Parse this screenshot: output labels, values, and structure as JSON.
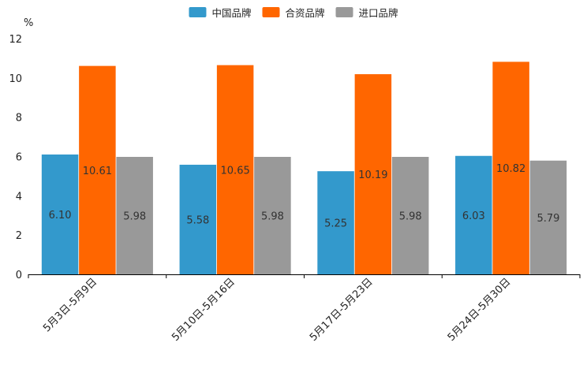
{
  "chart_data": {
    "type": "bar",
    "title": "",
    "xlabel": "",
    "ylabel": "%",
    "ylim": [
      0,
      12
    ],
    "yticks": [
      0,
      2,
      4,
      6,
      8,
      10,
      12
    ],
    "grid": false,
    "legend_position": "top-center",
    "categories": [
      "5月3日-5月9日",
      "5月10日-5月16日",
      "5月17日-5月23日",
      "5月24日-5月30日"
    ],
    "series": [
      {
        "name": "中国品牌",
        "color": "#3399cc",
        "values": [
          6.1,
          5.58,
          5.25,
          6.03
        ],
        "labels": [
          "6.10",
          "5.58",
          "5.25",
          "6.03"
        ]
      },
      {
        "name": "合资品牌",
        "color": "#ff6600",
        "values": [
          10.61,
          10.65,
          10.19,
          10.82
        ],
        "labels": [
          "10.61",
          "10.65",
          "10.19",
          "10.82"
        ]
      },
      {
        "name": "进口品牌",
        "color": "#999999",
        "values": [
          5.98,
          5.98,
          5.98,
          5.79
        ],
        "labels": [
          "5.98",
          "5.98",
          "5.98",
          "5.79"
        ]
      }
    ]
  }
}
